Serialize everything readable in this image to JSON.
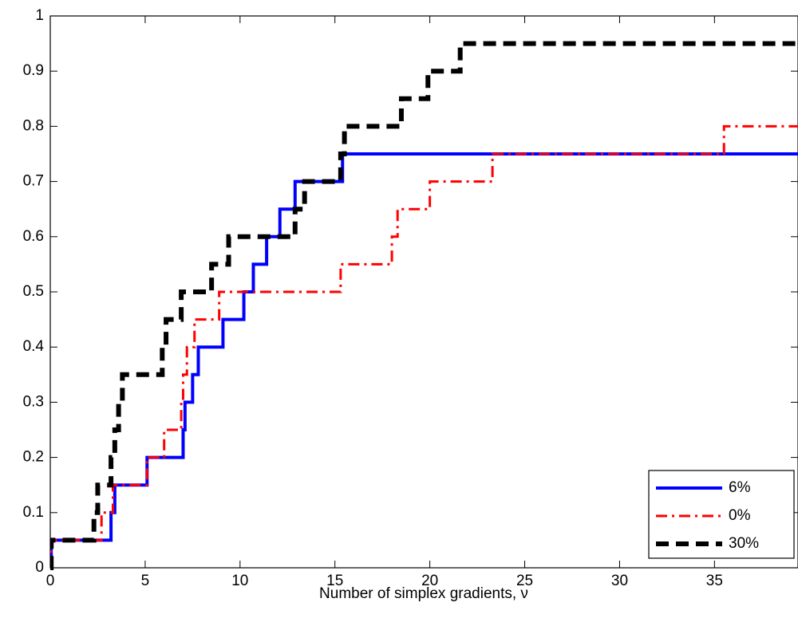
{
  "chart_data": {
    "type": "step",
    "xlabel": "Number of simplex gradients, ν",
    "xlim": [
      0,
      39.4
    ],
    "xticks": [
      0,
      5,
      10,
      15,
      20,
      25,
      30,
      35
    ],
    "ylim": [
      0,
      1
    ],
    "yticks": [
      0,
      0.1,
      0.2,
      0.3,
      0.4,
      0.5,
      0.6,
      0.7,
      0.8,
      0.9,
      1
    ],
    "grid": false,
    "legend": "lower right",
    "series": [
      {
        "name": "6%",
        "color": "#0000ff",
        "style": "solid",
        "x": [
          0,
          0.05,
          3.2,
          3.4,
          5.1,
          7.0,
          7.1,
          7.5,
          7.8,
          9.1,
          10.2,
          10.7,
          11.4,
          12.1,
          12.9,
          15.4
        ],
        "values": [
          0,
          0.05,
          0.1,
          0.15,
          0.2,
          0.25,
          0.3,
          0.35,
          0.4,
          0.45,
          0.5,
          0.55,
          0.6,
          0.65,
          0.7,
          0.75
        ]
      },
      {
        "name": "0%",
        "color": "#ff0000",
        "style": "dashdot",
        "x": [
          0,
          0.05,
          2.7,
          3.3,
          5.1,
          6.0,
          6.9,
          7.0,
          7.2,
          7.6,
          8.9,
          15.3,
          18.0,
          18.3,
          20.0,
          23.3,
          35.5
        ],
        "values": [
          0,
          0.05,
          0.1,
          0.15,
          0.2,
          0.25,
          0.3,
          0.35,
          0.4,
          0.45,
          0.5,
          0.55,
          0.6,
          0.65,
          0.7,
          0.75,
          0.8
        ]
      },
      {
        "name": "30%",
        "color": "#000000",
        "style": "dashed",
        "x": [
          0,
          0.05,
          2.3,
          2.5,
          3.2,
          3.4,
          3.6,
          3.8,
          5.9,
          6.1,
          6.9,
          8.5,
          9.4,
          12.9,
          13.4,
          15.3,
          15.5,
          18.5,
          19.9,
          21.6
        ],
        "values": [
          0,
          0.05,
          0.1,
          0.15,
          0.2,
          0.25,
          0.3,
          0.35,
          0.4,
          0.45,
          0.5,
          0.55,
          0.6,
          0.65,
          0.7,
          0.75,
          0.8,
          0.85,
          0.9,
          0.95
        ]
      }
    ]
  }
}
